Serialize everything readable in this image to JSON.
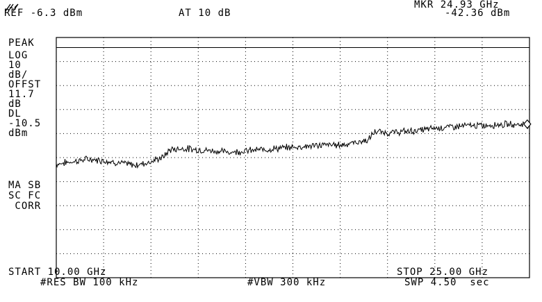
{
  "header": {
    "ref": "REF -6.3 dBm",
    "atten": "AT 10 dB",
    "marker_freq": "MKR 24.93 GHz",
    "marker_level": "-42.36 dBm"
  },
  "left_panel": {
    "lines": [
      "PEAK",
      "LOG",
      "10",
      "dB/",
      "OFFST",
      "11.7",
      "dB",
      "DL",
      "-10.5",
      "dBm"
    ],
    "lower_lines": [
      "MA SB",
      "SC FC",
      " CORR"
    ]
  },
  "footer": {
    "start": "START 10.00 GHz",
    "stop": "STOP 25.00 GHz",
    "rbw": "#RES BW 100 kHz",
    "vbw": "#VBW 300 kHz",
    "sweep": "SWP 4.50  sec"
  },
  "chart_data": {
    "type": "line",
    "x_unit": "GHz",
    "y_unit": "dBm",
    "xlim": [
      10.0,
      25.0
    ],
    "ylim": [
      -106.3,
      -6.3
    ],
    "display_line_dbm": -10.5,
    "grid": true,
    "series": [
      {
        "x": [
          10.0,
          10.5,
          11.0,
          11.5,
          12.0,
          12.5,
          13.0,
          13.4,
          13.6,
          14.0,
          14.5,
          15.0,
          15.5,
          16.0,
          16.5,
          17.0,
          17.5,
          18.0,
          18.5,
          19.0,
          19.5,
          19.9,
          20.0,
          20.1,
          20.5,
          21.0,
          21.5,
          22.0,
          22.5,
          23.0,
          23.5,
          24.0,
          24.5,
          24.93,
          25.0
        ],
        "y": [
          -59.0,
          -58.0,
          -57.0,
          -57.5,
          -58.5,
          -59.5,
          -58.0,
          -56.0,
          -53.0,
          -52.5,
          -53.0,
          -53.5,
          -54.0,
          -53.5,
          -53.0,
          -52.5,
          -52.0,
          -51.5,
          -51.0,
          -51.0,
          -50.0,
          -49.0,
          -47.0,
          -45.5,
          -46.0,
          -45.5,
          -45.0,
          -44.0,
          -43.5,
          -43.0,
          -43.0,
          -42.5,
          -42.5,
          -42.36,
          -42.5
        ]
      }
    ],
    "marker": {
      "x": 24.93,
      "y": -42.36
    }
  }
}
